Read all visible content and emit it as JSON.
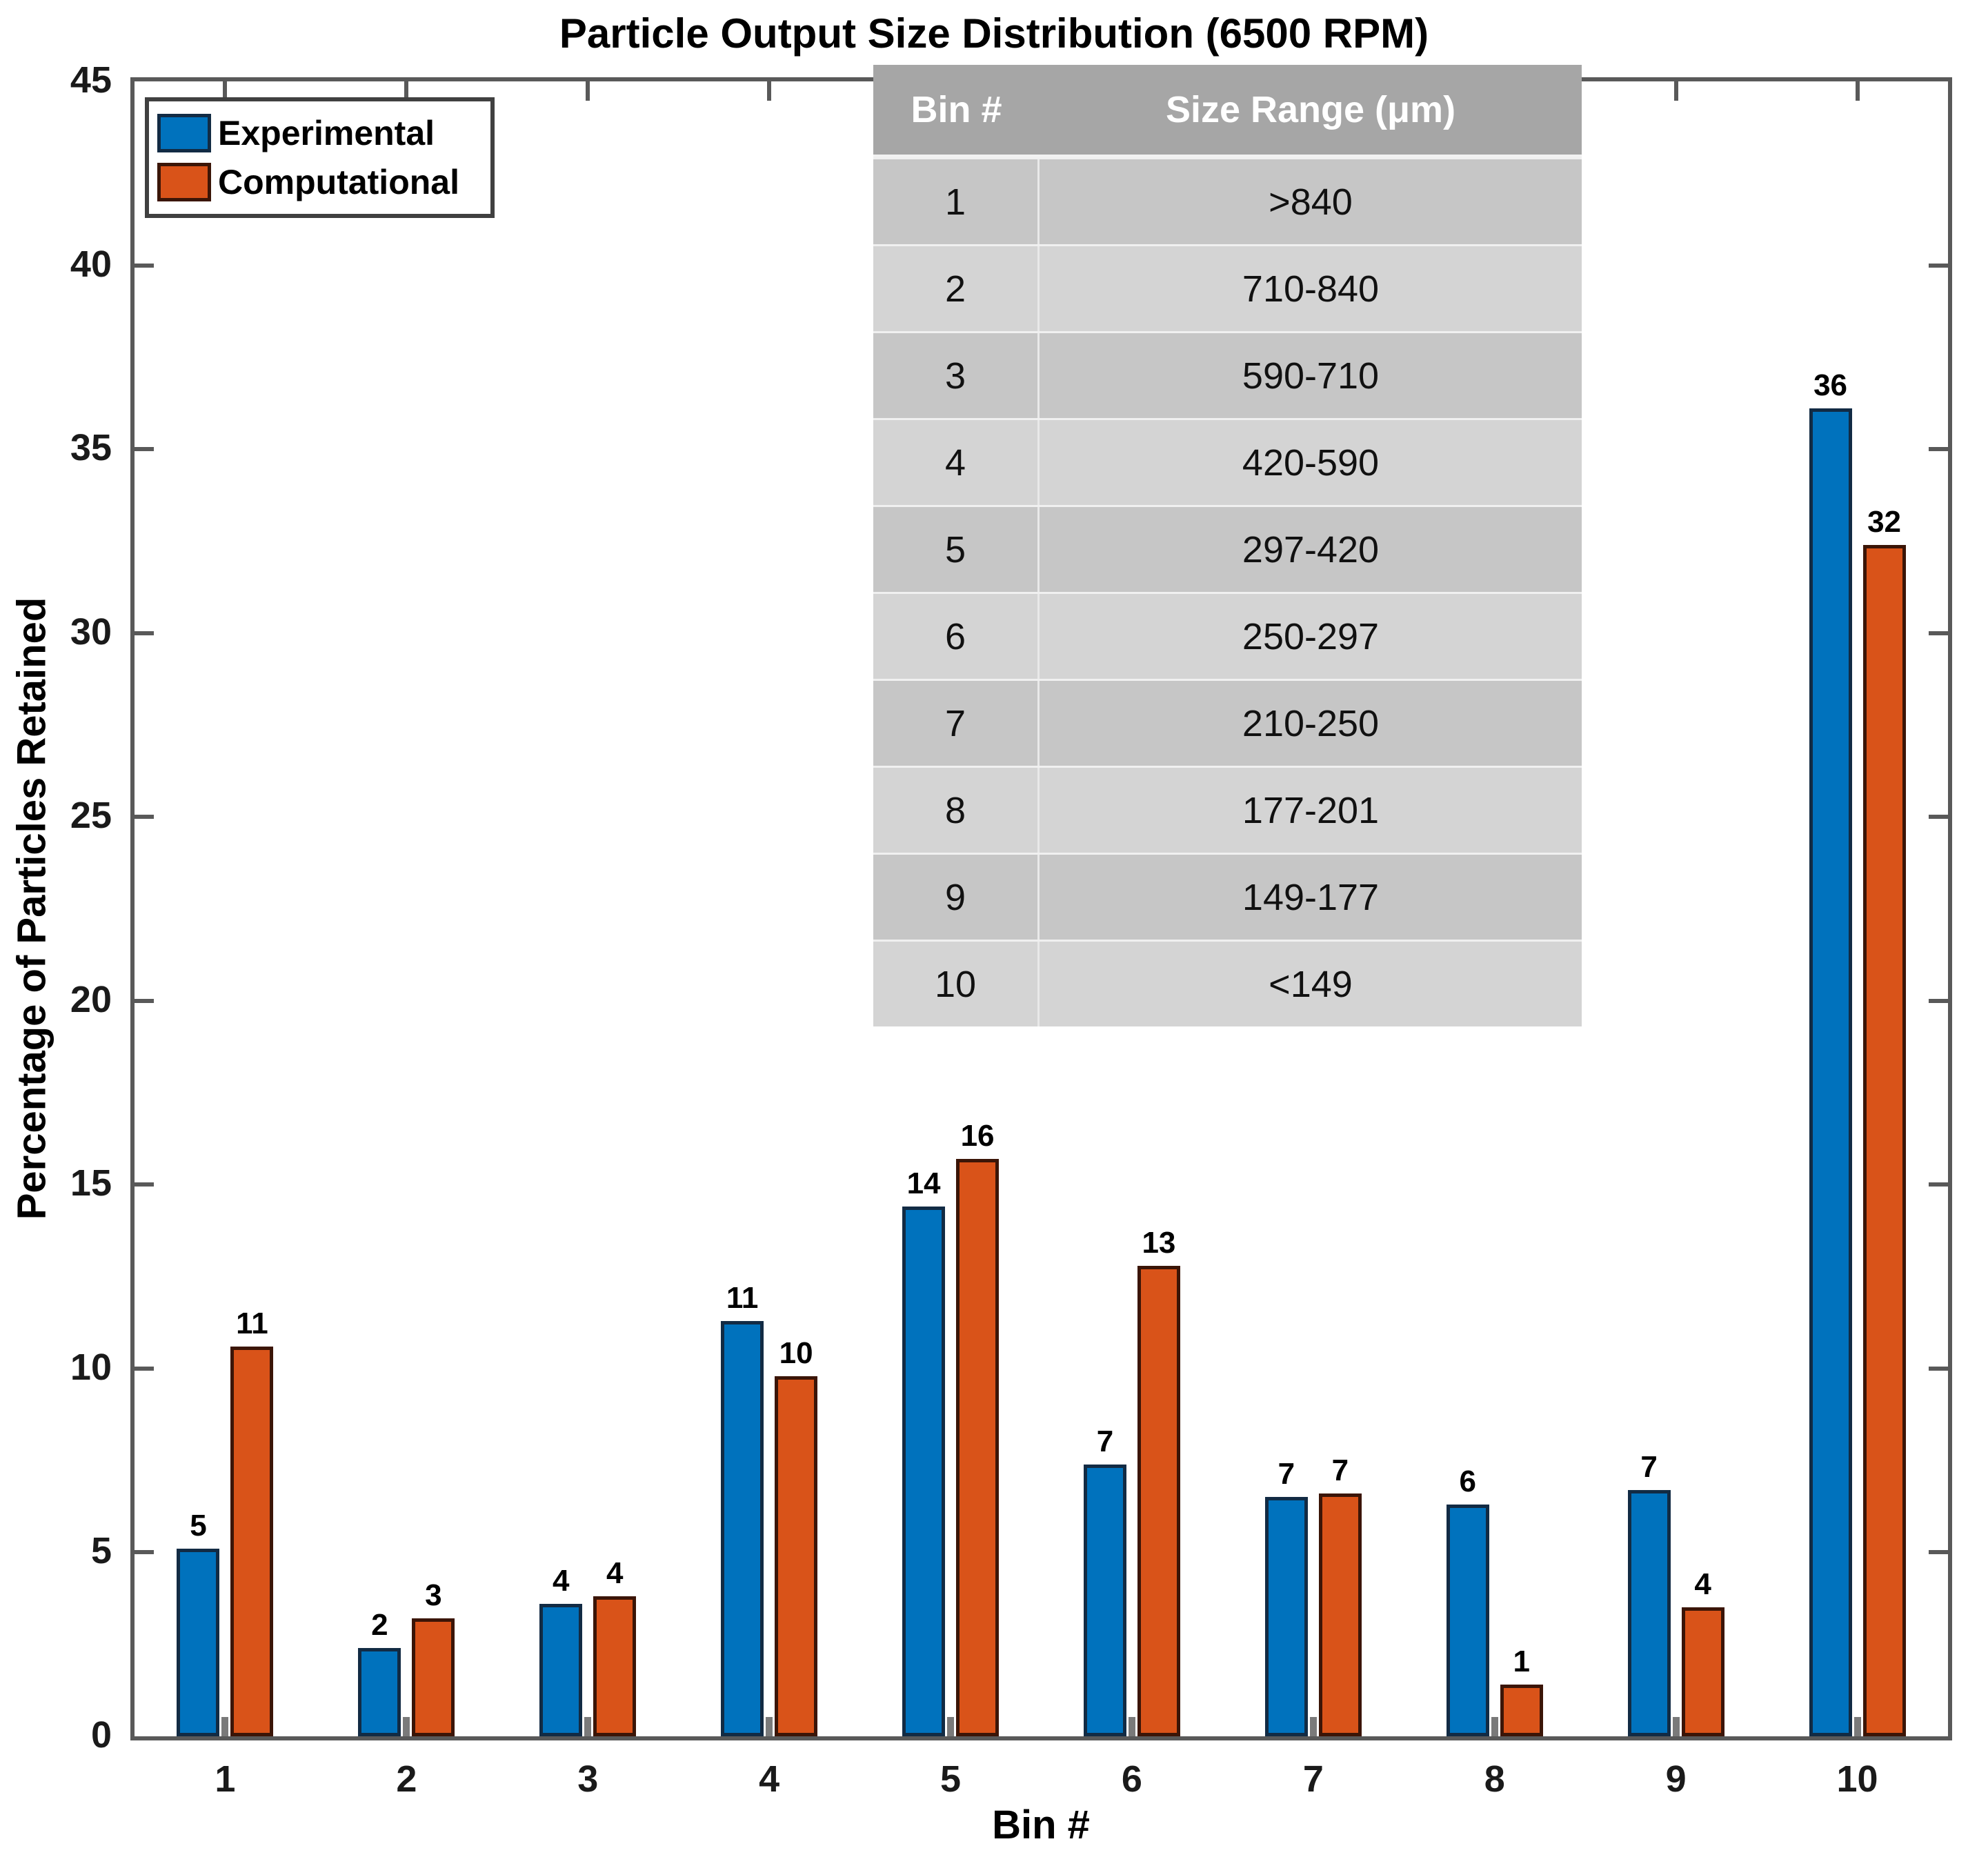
{
  "figure": {
    "title": "Particle Output Size Distribution (6500 RPM)",
    "x_axis_label": "Bin #",
    "y_axis_label": "Percentage of Particles Retained"
  },
  "legend": {
    "items": [
      {
        "label": "Experimental",
        "color": "#0072BD",
        "edge_color": "#122B44"
      },
      {
        "label": "Computational",
        "color": "#D95319",
        "edge_color": "#3B1507"
      }
    ]
  },
  "chart_data": {
    "type": "bar",
    "title": "Particle Output Size Distribution (6500 RPM)",
    "xlabel": "Bin #",
    "ylabel": "Percentage of Particles Retained",
    "ylim": [
      0,
      45
    ],
    "y_ticks": [
      0,
      5,
      10,
      15,
      20,
      25,
      30,
      35,
      40,
      45
    ],
    "categories": [
      "1",
      "2",
      "3",
      "4",
      "5",
      "6",
      "7",
      "8",
      "9",
      "10"
    ],
    "grid": false,
    "legend_position": "top-left",
    "series": [
      {
        "name": "Experimental",
        "color": "#0072BD",
        "edge_color": "#122B44",
        "values": [
          5.1,
          2.4,
          3.6,
          11.3,
          14.4,
          7.4,
          6.5,
          6.3,
          6.7,
          36.1
        ],
        "bar_labels": [
          "5",
          "2",
          "4",
          "11",
          "14",
          "7",
          "7",
          "6",
          "7",
          "36"
        ]
      },
      {
        "name": "Computational",
        "color": "#D95319",
        "edge_color": "#3B1507",
        "values": [
          10.6,
          3.2,
          3.8,
          9.8,
          15.7,
          12.8,
          6.6,
          1.4,
          3.5,
          32.4
        ],
        "bar_labels": [
          "11",
          "3",
          "4",
          "10",
          "16",
          "13",
          "7",
          "1",
          "4",
          "32"
        ]
      }
    ]
  },
  "inset_table": {
    "headers": [
      "Bin #",
      "Size Range (μm)"
    ],
    "rows": [
      [
        "1",
        ">840"
      ],
      [
        "2",
        "710-840"
      ],
      [
        "3",
        "590-710"
      ],
      [
        "4",
        "420-590"
      ],
      [
        "5",
        "297-420"
      ],
      [
        "6",
        "250-297"
      ],
      [
        "7",
        "210-250"
      ],
      [
        "8",
        "177-201"
      ],
      [
        "9",
        "149-177"
      ],
      [
        "10",
        "<149"
      ]
    ],
    "header_bg": "#A6A6A6",
    "header_text_color": "#FFFFFF",
    "row_bg_odd": "#C6C6C6",
    "row_bg_even": "#D4D4D4"
  },
  "style": {
    "axis_color": "#595959",
    "bottom_tick_stub_color": "#7A7A7A",
    "background": "#FFFFFF",
    "text_color": "#000000"
  }
}
